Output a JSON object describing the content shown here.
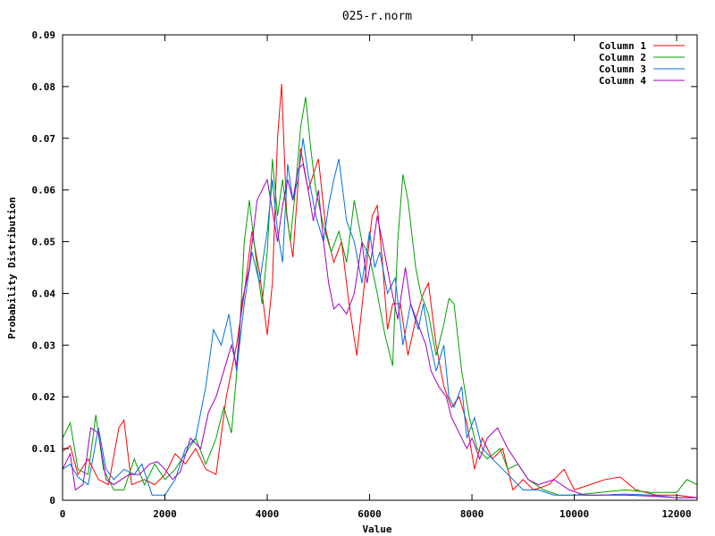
{
  "chart_data": {
    "type": "line",
    "title": "025-r.norm",
    "xlabel": "Value",
    "ylabel": "Probability Distribution",
    "xlim": [
      0,
      12400
    ],
    "ylim": [
      0,
      0.09
    ],
    "xticks": [
      0,
      2000,
      4000,
      6000,
      8000,
      10000,
      12000
    ],
    "xtick_labels": [
      "0",
      "2000",
      "4000",
      "6000",
      "8000",
      "10000",
      "12000"
    ],
    "yticks": [
      0,
      0.01,
      0.02,
      0.03,
      0.04,
      0.05,
      0.06,
      0.07,
      0.08,
      0.09
    ],
    "ytick_labels": [
      "0",
      "0.01",
      "0.02",
      "0.03",
      "0.04",
      "0.05",
      "0.06",
      "0.07",
      "0.08",
      "0.09"
    ],
    "grid": false,
    "legend_position": "top-right",
    "series": [
      {
        "name": "Column 1",
        "color": "#ff0000",
        "points": [
          [
            0,
            0.0095
          ],
          [
            150,
            0.0105
          ],
          [
            300,
            0.005
          ],
          [
            500,
            0.008
          ],
          [
            700,
            0.004
          ],
          [
            900,
            0.003
          ],
          [
            1100,
            0.014
          ],
          [
            1200,
            0.0155
          ],
          [
            1350,
            0.003
          ],
          [
            1600,
            0.004
          ],
          [
            1800,
            0.003
          ],
          [
            2000,
            0.005
          ],
          [
            2200,
            0.009
          ],
          [
            2400,
            0.007
          ],
          [
            2600,
            0.01
          ],
          [
            2800,
            0.006
          ],
          [
            3000,
            0.005
          ],
          [
            3200,
            0.02
          ],
          [
            3400,
            0.03
          ],
          [
            3550,
            0.04
          ],
          [
            3700,
            0.052
          ],
          [
            3850,
            0.044
          ],
          [
            4000,
            0.032
          ],
          [
            4100,
            0.042
          ],
          [
            4200,
            0.07
          ],
          [
            4280,
            0.0805
          ],
          [
            4380,
            0.055
          ],
          [
            4500,
            0.047
          ],
          [
            4650,
            0.068
          ],
          [
            4800,
            0.06
          ],
          [
            5000,
            0.066
          ],
          [
            5150,
            0.052
          ],
          [
            5300,
            0.046
          ],
          [
            5450,
            0.05
          ],
          [
            5600,
            0.038
          ],
          [
            5750,
            0.028
          ],
          [
            5900,
            0.042
          ],
          [
            6050,
            0.055
          ],
          [
            6150,
            0.057
          ],
          [
            6250,
            0.046
          ],
          [
            6350,
            0.033
          ],
          [
            6450,
            0.038
          ],
          [
            6600,
            0.038
          ],
          [
            6750,
            0.028
          ],
          [
            6900,
            0.035
          ],
          [
            7050,
            0.04
          ],
          [
            7150,
            0.042
          ],
          [
            7300,
            0.03
          ],
          [
            7450,
            0.022
          ],
          [
            7600,
            0.018
          ],
          [
            7750,
            0.02
          ],
          [
            7900,
            0.015
          ],
          [
            8050,
            0.006
          ],
          [
            8200,
            0.012
          ],
          [
            8400,
            0.008
          ],
          [
            8600,
            0.01
          ],
          [
            8800,
            0.002
          ],
          [
            9000,
            0.004
          ],
          [
            9200,
            0.002
          ],
          [
            9500,
            0.003
          ],
          [
            9800,
            0.006
          ],
          [
            10000,
            0.002
          ],
          [
            10300,
            0.003
          ],
          [
            10600,
            0.004
          ],
          [
            10900,
            0.0045
          ],
          [
            11200,
            0.002
          ],
          [
            11600,
            0.001
          ],
          [
            12000,
            0.001
          ],
          [
            12400,
            0.0005
          ]
        ]
      },
      {
        "name": "Column 2",
        "color": "#00a000",
        "points": [
          [
            0,
            0.012
          ],
          [
            150,
            0.015
          ],
          [
            300,
            0.006
          ],
          [
            500,
            0.005
          ],
          [
            650,
            0.0165
          ],
          [
            800,
            0.006
          ],
          [
            1000,
            0.002
          ],
          [
            1200,
            0.002
          ],
          [
            1400,
            0.008
          ],
          [
            1600,
            0.003
          ],
          [
            1800,
            0.007
          ],
          [
            2000,
            0.004
          ],
          [
            2200,
            0.006
          ],
          [
            2400,
            0.009
          ],
          [
            2600,
            0.012
          ],
          [
            2800,
            0.007
          ],
          [
            3000,
            0.012
          ],
          [
            3150,
            0.018
          ],
          [
            3300,
            0.013
          ],
          [
            3450,
            0.03
          ],
          [
            3550,
            0.05
          ],
          [
            3650,
            0.058
          ],
          [
            3800,
            0.045
          ],
          [
            3900,
            0.038
          ],
          [
            4000,
            0.048
          ],
          [
            4100,
            0.066
          ],
          [
            4200,
            0.055
          ],
          [
            4300,
            0.062
          ],
          [
            4450,
            0.05
          ],
          [
            4550,
            0.06
          ],
          [
            4650,
            0.072
          ],
          [
            4750,
            0.078
          ],
          [
            4850,
            0.068
          ],
          [
            4950,
            0.06
          ],
          [
            5100,
            0.053
          ],
          [
            5250,
            0.048
          ],
          [
            5400,
            0.052
          ],
          [
            5550,
            0.046
          ],
          [
            5700,
            0.058
          ],
          [
            5850,
            0.05
          ],
          [
            6000,
            0.047
          ],
          [
            6150,
            0.04
          ],
          [
            6300,
            0.032
          ],
          [
            6450,
            0.026
          ],
          [
            6550,
            0.05
          ],
          [
            6650,
            0.063
          ],
          [
            6750,
            0.058
          ],
          [
            6900,
            0.045
          ],
          [
            7000,
            0.04
          ],
          [
            7150,
            0.036
          ],
          [
            7300,
            0.028
          ],
          [
            7450,
            0.034
          ],
          [
            7550,
            0.039
          ],
          [
            7650,
            0.038
          ],
          [
            7800,
            0.025
          ],
          [
            7950,
            0.016
          ],
          [
            8100,
            0.01
          ],
          [
            8300,
            0.008
          ],
          [
            8550,
            0.01
          ],
          [
            8700,
            0.006
          ],
          [
            8900,
            0.007
          ],
          [
            9100,
            0.004
          ],
          [
            9400,
            0.002
          ],
          [
            9700,
            0.001
          ],
          [
            10000,
            0.001
          ],
          [
            10500,
            0.0015
          ],
          [
            11000,
            0.002
          ],
          [
            11500,
            0.0015
          ],
          [
            12000,
            0.0015
          ],
          [
            12200,
            0.004
          ],
          [
            12400,
            0.003
          ]
        ]
      },
      {
        "name": "Column 3",
        "color": "#0070e0",
        "points": [
          [
            0,
            0.006
          ],
          [
            150,
            0.007
          ],
          [
            300,
            0.0045
          ],
          [
            500,
            0.003
          ],
          [
            700,
            0.014
          ],
          [
            850,
            0.006
          ],
          [
            1000,
            0.004
          ],
          [
            1200,
            0.006
          ],
          [
            1400,
            0.005
          ],
          [
            1550,
            0.007
          ],
          [
            1750,
            0.001
          ],
          [
            2000,
            0.001
          ],
          [
            2200,
            0.004
          ],
          [
            2400,
            0.01
          ],
          [
            2600,
            0.012
          ],
          [
            2800,
            0.022
          ],
          [
            2950,
            0.033
          ],
          [
            3100,
            0.03
          ],
          [
            3250,
            0.036
          ],
          [
            3400,
            0.025
          ],
          [
            3550,
            0.038
          ],
          [
            3700,
            0.048
          ],
          [
            3850,
            0.042
          ],
          [
            4000,
            0.052
          ],
          [
            4100,
            0.062
          ],
          [
            4200,
            0.052
          ],
          [
            4300,
            0.046
          ],
          [
            4400,
            0.065
          ],
          [
            4500,
            0.058
          ],
          [
            4600,
            0.062
          ],
          [
            4700,
            0.07
          ],
          [
            4800,
            0.063
          ],
          [
            4950,
            0.055
          ],
          [
            5100,
            0.05
          ],
          [
            5200,
            0.057
          ],
          [
            5300,
            0.062
          ],
          [
            5400,
            0.066
          ],
          [
            5550,
            0.054
          ],
          [
            5700,
            0.05
          ],
          [
            5850,
            0.042
          ],
          [
            6000,
            0.052
          ],
          [
            6100,
            0.045
          ],
          [
            6200,
            0.048
          ],
          [
            6350,
            0.04
          ],
          [
            6500,
            0.043
          ],
          [
            6650,
            0.03
          ],
          [
            6800,
            0.038
          ],
          [
            6950,
            0.033
          ],
          [
            7050,
            0.038
          ],
          [
            7150,
            0.032
          ],
          [
            7300,
            0.025
          ],
          [
            7450,
            0.03
          ],
          [
            7550,
            0.02
          ],
          [
            7650,
            0.018
          ],
          [
            7800,
            0.022
          ],
          [
            7900,
            0.012
          ],
          [
            8050,
            0.016
          ],
          [
            8200,
            0.01
          ],
          [
            8400,
            0.008
          ],
          [
            8600,
            0.006
          ],
          [
            8800,
            0.004
          ],
          [
            9000,
            0.002
          ],
          [
            9300,
            0.002
          ],
          [
            9600,
            0.001
          ],
          [
            10000,
            0.001
          ],
          [
            10500,
            0.001
          ],
          [
            11000,
            0.0012
          ],
          [
            11500,
            0.001
          ],
          [
            12000,
            0.0005
          ],
          [
            12400,
            0.0005
          ]
        ]
      },
      {
        "name": "Column 4",
        "color": "#a000c0",
        "points": [
          [
            0,
            0.006
          ],
          [
            150,
            0.009
          ],
          [
            250,
            0.002
          ],
          [
            400,
            0.003
          ],
          [
            550,
            0.014
          ],
          [
            700,
            0.013
          ],
          [
            850,
            0.004
          ],
          [
            1000,
            0.003
          ],
          [
            1150,
            0.004
          ],
          [
            1300,
            0.005
          ],
          [
            1500,
            0.005
          ],
          [
            1700,
            0.007
          ],
          [
            1850,
            0.0075
          ],
          [
            2000,
            0.006
          ],
          [
            2150,
            0.004
          ],
          [
            2300,
            0.0055
          ],
          [
            2500,
            0.012
          ],
          [
            2700,
            0.01
          ],
          [
            2850,
            0.017
          ],
          [
            3000,
            0.02
          ],
          [
            3150,
            0.025
          ],
          [
            3300,
            0.03
          ],
          [
            3400,
            0.026
          ],
          [
            3500,
            0.038
          ],
          [
            3650,
            0.045
          ],
          [
            3800,
            0.058
          ],
          [
            3900,
            0.06
          ],
          [
            4000,
            0.062
          ],
          [
            4100,
            0.056
          ],
          [
            4200,
            0.05
          ],
          [
            4300,
            0.057
          ],
          [
            4400,
            0.062
          ],
          [
            4500,
            0.058
          ],
          [
            4600,
            0.064
          ],
          [
            4700,
            0.065
          ],
          [
            4800,
            0.06
          ],
          [
            4900,
            0.054
          ],
          [
            5000,
            0.06
          ],
          [
            5100,
            0.05
          ],
          [
            5200,
            0.042
          ],
          [
            5300,
            0.037
          ],
          [
            5400,
            0.038
          ],
          [
            5550,
            0.036
          ],
          [
            5700,
            0.04
          ],
          [
            5850,
            0.05
          ],
          [
            5950,
            0.042
          ],
          [
            6050,
            0.048
          ],
          [
            6150,
            0.055
          ],
          [
            6250,
            0.05
          ],
          [
            6400,
            0.042
          ],
          [
            6550,
            0.035
          ],
          [
            6700,
            0.045
          ],
          [
            6800,
            0.038
          ],
          [
            6950,
            0.034
          ],
          [
            7100,
            0.03
          ],
          [
            7200,
            0.025
          ],
          [
            7350,
            0.022
          ],
          [
            7500,
            0.02
          ],
          [
            7600,
            0.016
          ],
          [
            7750,
            0.013
          ],
          [
            7900,
            0.01
          ],
          [
            8000,
            0.012
          ],
          [
            8150,
            0.008
          ],
          [
            8300,
            0.012
          ],
          [
            8500,
            0.014
          ],
          [
            8700,
            0.01
          ],
          [
            8900,
            0.007
          ],
          [
            9100,
            0.004
          ],
          [
            9300,
            0.003
          ],
          [
            9600,
            0.004
          ],
          [
            9900,
            0.002
          ],
          [
            10200,
            0.001
          ],
          [
            10600,
            0.001
          ],
          [
            11000,
            0.001
          ],
          [
            11500,
            0.0008
          ],
          [
            12000,
            0.0005
          ],
          [
            12400,
            0.0005
          ]
        ]
      }
    ]
  }
}
